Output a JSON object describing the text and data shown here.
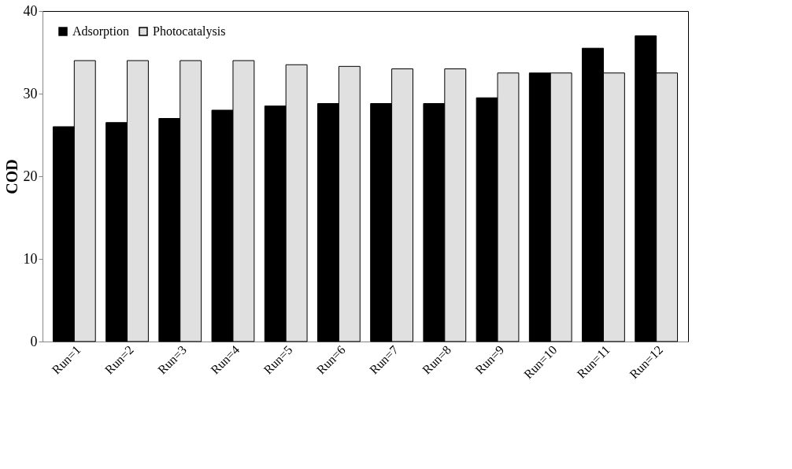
{
  "chart_data": {
    "type": "bar",
    "ylabel": "COD",
    "categories": [
      "Run=1",
      "Run=2",
      "Run=3",
      "Run=4",
      "Run=5",
      "Run=6",
      "Run=7",
      "Run=8",
      "Run=9",
      "Run=10",
      "Run=11",
      "Run=12"
    ],
    "series": [
      {
        "name": "Adsorption",
        "color": "#000000",
        "values": [
          26,
          26.5,
          27,
          28,
          28.5,
          28.8,
          28.8,
          28.8,
          29.5,
          32.5,
          35.5,
          37
        ]
      },
      {
        "name": "Photocatalysis",
        "color": "#e0e0e0",
        "values": [
          34,
          34,
          34,
          34,
          33.5,
          33.3,
          33,
          33,
          32.5,
          32.5,
          32.5,
          32.5
        ]
      }
    ],
    "ylim": [
      0,
      40
    ],
    "yticks": [
      0,
      10,
      20,
      30,
      40
    ],
    "grid": false,
    "legend": "top left"
  }
}
